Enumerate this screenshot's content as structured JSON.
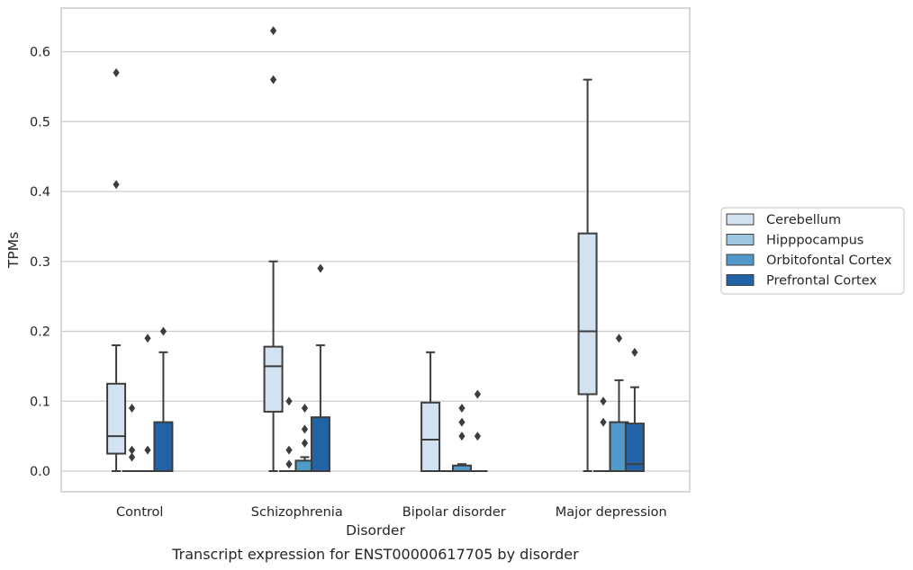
{
  "caption": "Transcript expression for ENST00000617705 by disorder",
  "colors": {
    "Cerebellum": "#d2e2f1",
    "Hipppocampus": "#9dc6e0",
    "Orbitofontal Cortex": "#5099c8",
    "Prefrontal Cortex": "#2263a8",
    "line": "#3d3d3d",
    "grid": "#cccccc"
  },
  "chart_data": {
    "type": "box",
    "xlabel": "Disorder",
    "ylabel": "TPMs",
    "ylim": [
      -0.03,
      0.66
    ],
    "yticks": [
      0.0,
      0.1,
      0.2,
      0.3,
      0.4,
      0.5,
      0.6
    ],
    "ytick_labels": [
      "0.0",
      "0.1",
      "0.2",
      "0.3",
      "0.4",
      "0.5",
      "0.6"
    ],
    "categories": [
      "Control",
      "Schizophrenia",
      "Bipolar disorder",
      "Major depression"
    ],
    "grid": true,
    "legend_position": "outside-right",
    "series": [
      {
        "name": "Cerebellum",
        "boxes": [
          {
            "q1": 0.025,
            "median": 0.05,
            "q3": 0.125,
            "whisker_low": 0.0,
            "whisker_high": 0.18,
            "outliers": [
              0.41,
              0.57
            ]
          },
          {
            "q1": 0.085,
            "median": 0.15,
            "q3": 0.178,
            "whisker_low": 0.0,
            "whisker_high": 0.3,
            "outliers": [
              0.56,
              0.63
            ]
          },
          {
            "q1": 0.0,
            "median": 0.045,
            "q3": 0.098,
            "whisker_low": 0.0,
            "whisker_high": 0.17,
            "outliers": []
          },
          {
            "q1": 0.11,
            "median": 0.2,
            "q3": 0.34,
            "whisker_low": 0.0,
            "whisker_high": 0.56,
            "outliers": []
          }
        ]
      },
      {
        "name": "Hipppocampus",
        "boxes": [
          {
            "q1": 0.0,
            "median": 0.0,
            "q3": 0.0,
            "whisker_low": 0.0,
            "whisker_high": 0.0,
            "outliers": [
              0.02,
              0.03,
              0.09
            ]
          },
          {
            "q1": 0.0,
            "median": 0.0,
            "q3": 0.0,
            "whisker_low": 0.0,
            "whisker_high": 0.0,
            "outliers": [
              0.01,
              0.03,
              0.1
            ]
          },
          {
            "q1": 0.0,
            "median": 0.0,
            "q3": 0.0,
            "whisker_low": 0.0,
            "whisker_high": 0.0,
            "outliers": []
          },
          {
            "q1": 0.0,
            "median": 0.0,
            "q3": 0.0,
            "whisker_low": 0.0,
            "whisker_high": 0.0,
            "outliers": [
              0.07,
              0.1
            ]
          }
        ]
      },
      {
        "name": "Orbitofontal Cortex",
        "boxes": [
          {
            "q1": 0.0,
            "median": 0.0,
            "q3": 0.0,
            "whisker_low": 0.0,
            "whisker_high": 0.0,
            "outliers": [
              0.03,
              0.19
            ]
          },
          {
            "q1": 0.0,
            "median": 0.0,
            "q3": 0.015,
            "whisker_low": 0.0,
            "whisker_high": 0.02,
            "outliers": [
              0.04,
              0.06,
              0.09
            ]
          },
          {
            "q1": 0.0,
            "median": 0.0,
            "q3": 0.008,
            "whisker_low": 0.0,
            "whisker_high": 0.01,
            "outliers": [
              0.05,
              0.07,
              0.09
            ]
          },
          {
            "q1": 0.0,
            "median": 0.0,
            "q3": 0.07,
            "whisker_low": 0.0,
            "whisker_high": 0.13,
            "outliers": [
              0.19
            ]
          }
        ]
      },
      {
        "name": "Prefrontal Cortex",
        "boxes": [
          {
            "q1": 0.0,
            "median": 0.0,
            "q3": 0.07,
            "whisker_low": 0.0,
            "whisker_high": 0.17,
            "outliers": [
              0.2
            ]
          },
          {
            "q1": 0.0,
            "median": 0.0,
            "q3": 0.077,
            "whisker_low": 0.0,
            "whisker_high": 0.18,
            "outliers": [
              0.29
            ]
          },
          {
            "q1": 0.0,
            "median": 0.0,
            "q3": 0.0,
            "whisker_low": 0.0,
            "whisker_high": 0.0,
            "outliers": [
              0.05,
              0.11
            ]
          },
          {
            "q1": 0.0,
            "median": 0.01,
            "q3": 0.068,
            "whisker_low": 0.0,
            "whisker_high": 0.12,
            "outliers": [
              0.17
            ]
          }
        ]
      }
    ]
  }
}
